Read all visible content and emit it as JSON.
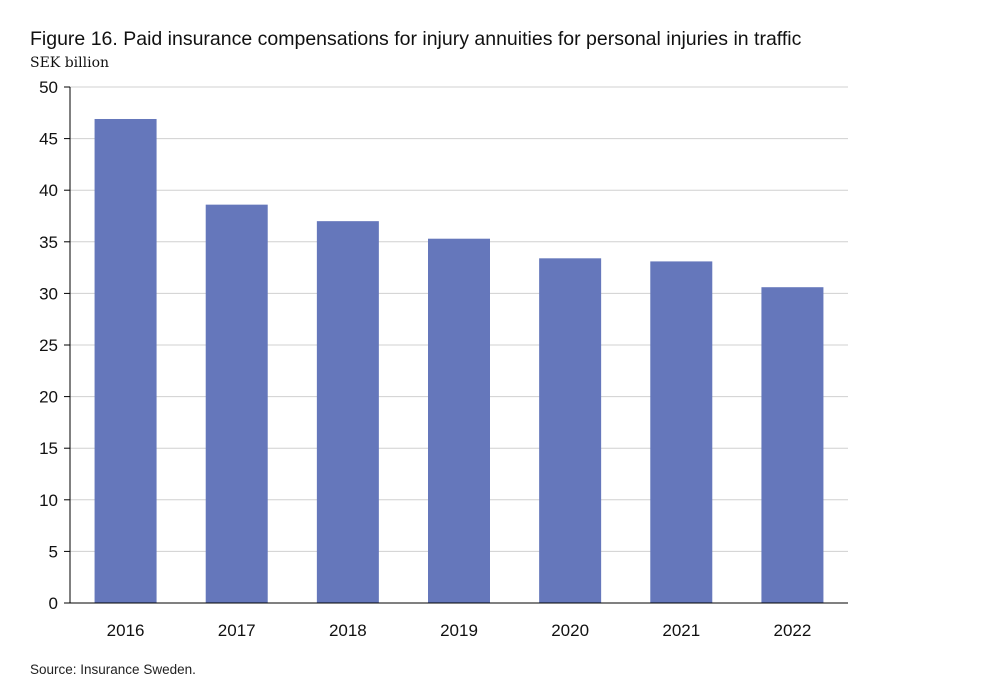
{
  "chart_data": {
    "type": "bar",
    "title": "Figure 16. Paid insurance compensations for injury annuities for personal injuries in traffic",
    "ylabel": "SEK billion",
    "xlabel": "",
    "categories": [
      "2016",
      "2017",
      "2018",
      "2019",
      "2020",
      "2021",
      "2022"
    ],
    "values": [
      46.9,
      38.6,
      37.0,
      35.3,
      33.4,
      33.1,
      30.6
    ],
    "ylim": [
      0,
      50
    ],
    "yticks": [
      0,
      5,
      10,
      15,
      20,
      25,
      30,
      35,
      40,
      45,
      50
    ],
    "grid": true,
    "legend": "none",
    "bar_color": "#6577bb",
    "source": "Source: Insurance Sweden."
  }
}
